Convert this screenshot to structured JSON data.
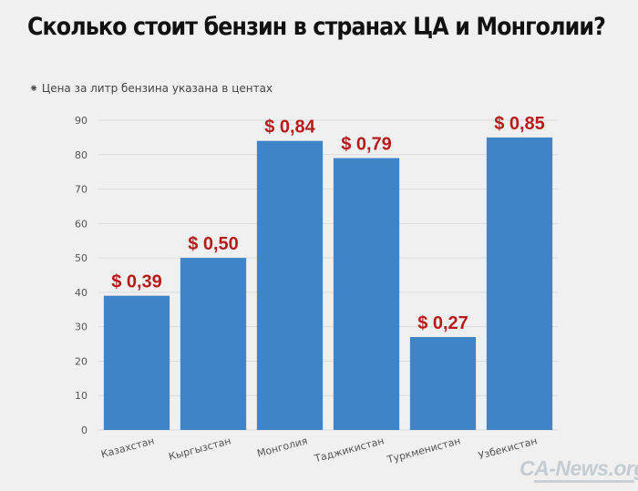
{
  "chart_data": {
    "type": "bar",
    "title": "Сколько стоит бензин в странах ЦА и Монголии?",
    "subtitle": "Цена за литр бензина указана в центах",
    "categories": [
      "Казахстан",
      "Кыргызстан",
      "Монголия",
      "Таджикистан",
      "Туркменистан",
      "Узбекистан"
    ],
    "values": [
      39,
      50,
      84,
      79,
      27,
      85
    ],
    "data_labels": [
      "$ 0,39",
      "$ 0,50",
      "$ 0,84",
      "$ 0,79",
      "$ 0,27",
      "$ 0,85"
    ],
    "ylim": [
      0,
      90
    ],
    "yticks": [
      0,
      10,
      20,
      30,
      40,
      50,
      60,
      70,
      80,
      90
    ],
    "grid": true,
    "xlabel": "",
    "ylabel": "",
    "colors": {
      "bar": "#3f84c8",
      "label": "#b71c1c",
      "grid": "#dcdcdc",
      "tick": "#555555",
      "background": "#f0f0f0"
    }
  },
  "watermark": {
    "text": "CA-News.org"
  }
}
